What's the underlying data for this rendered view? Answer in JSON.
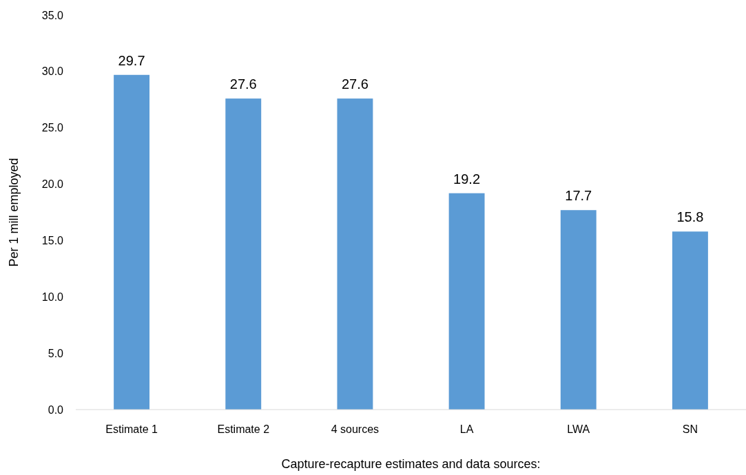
{
  "chart_data": {
    "type": "bar",
    "xlabel": "Capture-recapture estimates and data sources:",
    "ylabel": "Per 1 mill employed",
    "categories": [
      "Estimate 1",
      "Estimate 2",
      "4 sources",
      "LA",
      "LWA",
      "SN"
    ],
    "values": [
      29.7,
      27.6,
      27.6,
      19.2,
      17.7,
      15.8
    ],
    "color": "#5b9bd5",
    "ylim": [
      0,
      35
    ],
    "yticks": [
      {
        "value": 0,
        "label": "0.0"
      },
      {
        "value": 5,
        "label": "5.0"
      },
      {
        "value": 10,
        "label": "10.0"
      },
      {
        "value": 15,
        "label": "15.0"
      },
      {
        "value": 20,
        "label": "20.0"
      },
      {
        "value": 25,
        "label": "25.0"
      },
      {
        "value": 30,
        "label": "30.0"
      },
      {
        "value": 35,
        "label": "35.0"
      }
    ],
    "data_labels": true
  }
}
